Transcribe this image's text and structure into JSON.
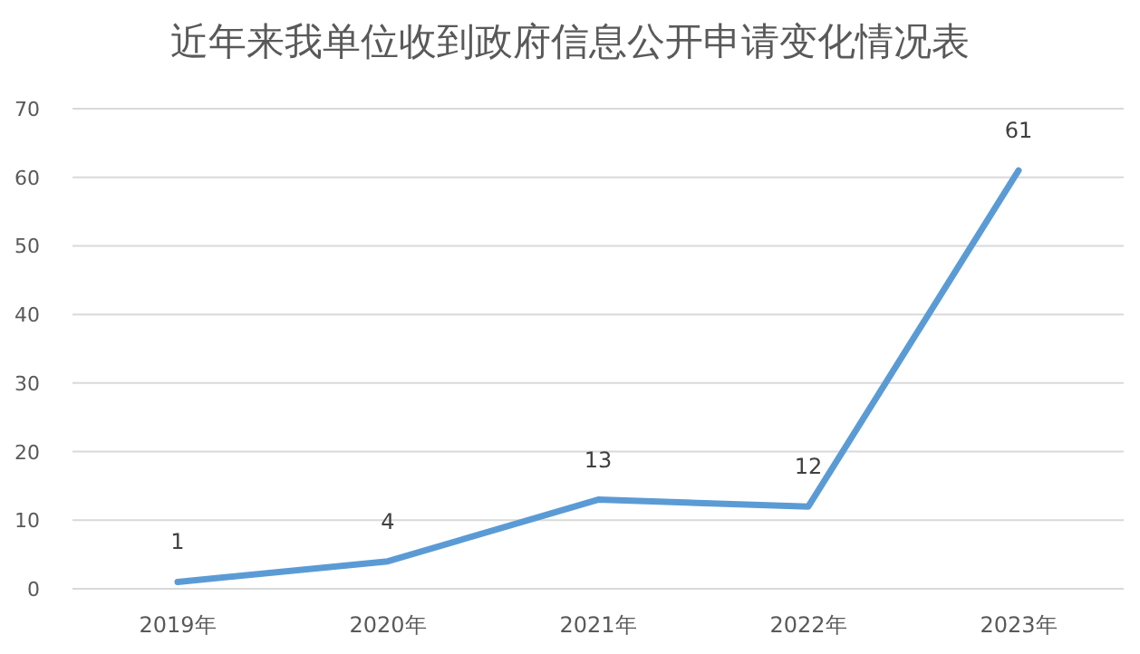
{
  "chart_data": {
    "type": "line",
    "title": "近年来我单位收到政府信息公开申请变化情况表",
    "categories": [
      "2019年",
      "2020年",
      "2021年",
      "2022年",
      "2023年"
    ],
    "series": [
      {
        "color": "#5b9bd5",
        "values": [
          1,
          4,
          13,
          12,
          61
        ]
      }
    ],
    "ylim": [
      0,
      70
    ],
    "yticks": [
      0,
      10,
      20,
      30,
      40,
      50,
      60,
      70
    ],
    "grid": "y",
    "data_labels": true,
    "marker": "none",
    "line_style": "solid"
  }
}
